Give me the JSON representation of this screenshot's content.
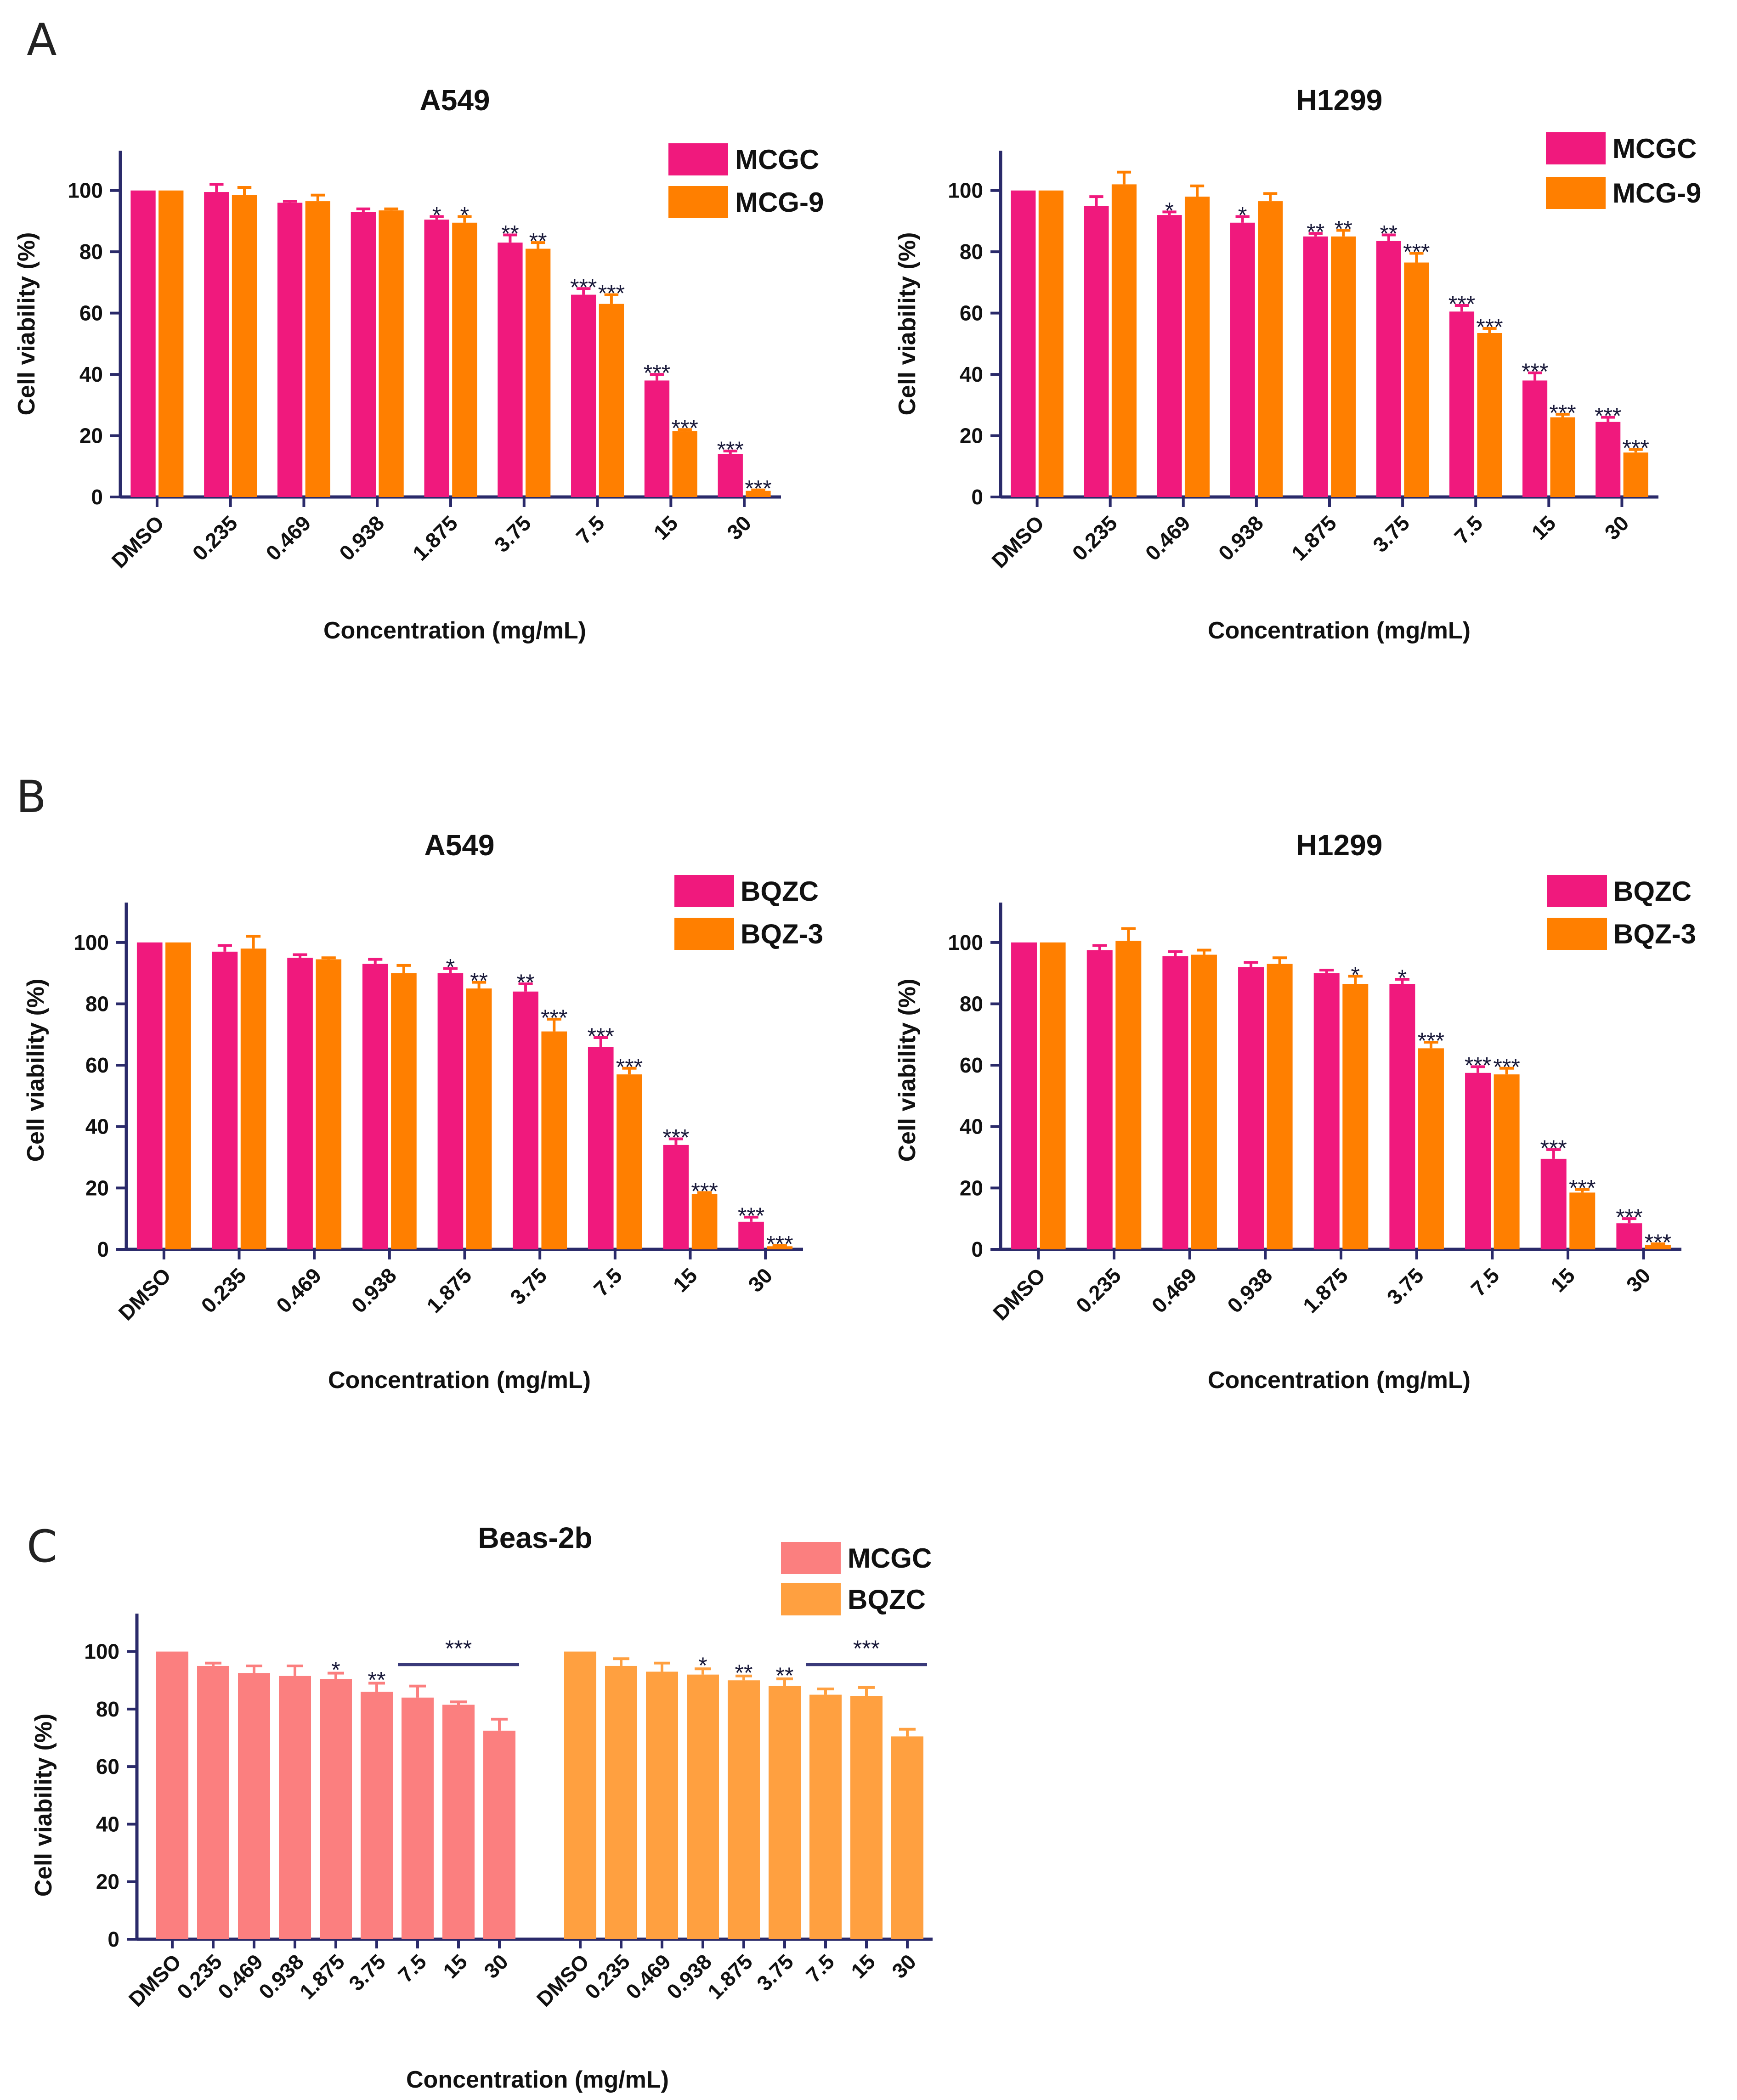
{
  "colors": {
    "magenta": "#f0197d",
    "orange": "#ff7f00",
    "salmon": "#fb7f7f",
    "lightorange": "#ffa040",
    "axis": "#2a2a6a",
    "sigline": "#3a3a7a"
  },
  "panels": {
    "A": "A",
    "B": "B",
    "C": "C"
  },
  "chart_data": [
    {
      "type": "bar",
      "panel": "A",
      "title": "A549",
      "xlabel": "Concentration (mg/mL)",
      "ylabel": "Cell viability (%)",
      "ylim": [
        0,
        110
      ],
      "yticks": [
        "0",
        "20",
        "40",
        "60",
        "80",
        "100"
      ],
      "categories": [
        "DMSO",
        "0.235",
        "0.469",
        "0.938",
        "1.875",
        "3.75",
        "7.5",
        "15",
        "30"
      ],
      "series": [
        {
          "name": "MCGC",
          "color": "magenta",
          "values": [
            100,
            99.5,
            96,
            93,
            90.5,
            83,
            66,
            38,
            14
          ],
          "errors": [
            0,
            2.5,
            0.5,
            1,
            1,
            2.5,
            2,
            2,
            1
          ],
          "stars": [
            "",
            "",
            "",
            "",
            "*",
            "**",
            "***",
            "***",
            "***"
          ]
        },
        {
          "name": "MCG-9",
          "color": "orange",
          "values": [
            100,
            98.5,
            96.5,
            93.5,
            89.5,
            81,
            63,
            21.5,
            2
          ],
          "errors": [
            0,
            2.5,
            2,
            0.5,
            2,
            2,
            3,
            0.5,
            0.3
          ],
          "stars": [
            "",
            "",
            "",
            "",
            "*",
            "**",
            "***",
            "***",
            "***"
          ]
        }
      ]
    },
    {
      "type": "bar",
      "panel": "A",
      "title": "H1299",
      "xlabel": "Concentration (mg/mL)",
      "ylabel": "Cell viability (%)",
      "ylim": [
        0,
        110
      ],
      "yticks": [
        "0",
        "20",
        "40",
        "60",
        "80",
        "100"
      ],
      "categories": [
        "DMSO",
        "0.235",
        "0.469",
        "0.938",
        "1.875",
        "3.75",
        "7.5",
        "15",
        "30"
      ],
      "series": [
        {
          "name": "MCGC",
          "color": "magenta",
          "values": [
            100,
            95,
            92,
            89.5,
            85,
            83.5,
            60.5,
            38,
            24.5
          ],
          "errors": [
            0,
            3,
            1,
            2,
            1,
            2,
            2,
            2.5,
            1.5
          ],
          "stars": [
            "",
            "",
            "*",
            "*",
            "**",
            "**",
            "***",
            "***",
            "***"
          ]
        },
        {
          "name": "MCG-9",
          "color": "orange",
          "values": [
            100,
            102,
            98,
            96.5,
            85,
            76.5,
            53.5,
            26,
            14.5
          ],
          "errors": [
            0,
            4,
            3.5,
            2.5,
            2,
            3,
            1.5,
            1,
            1
          ],
          "stars": [
            "",
            "",
            "",
            "",
            "**",
            "***",
            "***",
            "***",
            "***"
          ]
        }
      ]
    },
    {
      "type": "bar",
      "panel": "B",
      "title": "A549",
      "xlabel": "Concentration (mg/mL)",
      "ylabel": "Cell viability (%)",
      "ylim": [
        0,
        110
      ],
      "yticks": [
        "0",
        "20",
        "40",
        "60",
        "80",
        "100"
      ],
      "categories": [
        "DMSO",
        "0.235",
        "0.469",
        "0.938",
        "1.875",
        "3.75",
        "7.5",
        "15",
        "30"
      ],
      "series": [
        {
          "name": "BQZC",
          "color": "magenta",
          "values": [
            100,
            97,
            95,
            93,
            90,
            84,
            66,
            34,
            9
          ],
          "errors": [
            0,
            2,
            1,
            1.5,
            1.5,
            2.5,
            3,
            2,
            1.5
          ],
          "stars": [
            "",
            "",
            "",
            "",
            "*",
            "**",
            "***",
            "***",
            "***"
          ]
        },
        {
          "name": "BQZ-3",
          "color": "orange",
          "values": [
            100,
            98,
            94.5,
            90,
            85,
            71,
            57,
            18,
            1
          ],
          "errors": [
            0,
            4,
            0.5,
            2.5,
            2,
            4,
            2,
            0.5,
            0.3
          ],
          "stars": [
            "",
            "",
            "",
            "",
            "**",
            "***",
            "***",
            "***",
            "***"
          ]
        }
      ]
    },
    {
      "type": "bar",
      "panel": "B",
      "title": "H1299",
      "xlabel": "Concentration (mg/mL)",
      "ylabel": "Cell viability (%)",
      "ylim": [
        0,
        110
      ],
      "yticks": [
        "0",
        "20",
        "40",
        "60",
        "80",
        "100"
      ],
      "categories": [
        "DMSO",
        "0.235",
        "0.469",
        "0.938",
        "1.875",
        "3.75",
        "7.5",
        "15",
        "30"
      ],
      "series": [
        {
          "name": "BQZC",
          "color": "magenta",
          "values": [
            100,
            97.5,
            95.5,
            92,
            90,
            86.5,
            57.5,
            29.5,
            8.5
          ],
          "errors": [
            0,
            1.5,
            1.5,
            1.5,
            1,
            1.5,
            2,
            3,
            1.5
          ],
          "stars": [
            "",
            "",
            "",
            "",
            "",
            "*",
            "***",
            "***",
            "***"
          ]
        },
        {
          "name": "BQZ-3",
          "color": "orange",
          "values": [
            100,
            100.5,
            96,
            93,
            86.5,
            65.5,
            57,
            18.5,
            1.5
          ],
          "errors": [
            0,
            4,
            1.5,
            2,
            2.5,
            2,
            2,
            1,
            0.3
          ],
          "stars": [
            "",
            "",
            "",
            "",
            "*",
            "***",
            "***",
            "***",
            "***"
          ]
        }
      ]
    },
    {
      "type": "bar",
      "panel": "C",
      "title": "Beas-2b",
      "xlabel": "Concentration (mg/mL)",
      "ylabel": "Cell viability (%)",
      "ylim": [
        0,
        110
      ],
      "yticks": [
        "0",
        "20",
        "40",
        "60",
        "80",
        "100"
      ],
      "categories": [
        "DMSO",
        "0.235",
        "0.469",
        "0.938",
        "1.875",
        "3.75",
        "7.5",
        "15",
        "30"
      ],
      "series": [
        {
          "name": "MCGC",
          "color": "salmon",
          "values": [
            100,
            95,
            92.5,
            91.5,
            90.5,
            86,
            84,
            81.5,
            72.5
          ],
          "errors": [
            0,
            1,
            2.5,
            3.5,
            2,
            3,
            4,
            1,
            4
          ],
          "stars": [
            "",
            "",
            "",
            "",
            "*",
            "**",
            "",
            "",
            ""
          ],
          "bracket": "***"
        },
        {
          "name": "BQZC",
          "color": "lightorange",
          "values": [
            100,
            95,
            93,
            92,
            90,
            88,
            85,
            84.5,
            70.5
          ],
          "errors": [
            0,
            2.5,
            3,
            2,
            1.5,
            2.5,
            2,
            3,
            2.5
          ],
          "stars": [
            "",
            "",
            "",
            "*",
            "**",
            "**",
            "",
            "",
            ""
          ],
          "bracket": "***"
        }
      ]
    }
  ]
}
